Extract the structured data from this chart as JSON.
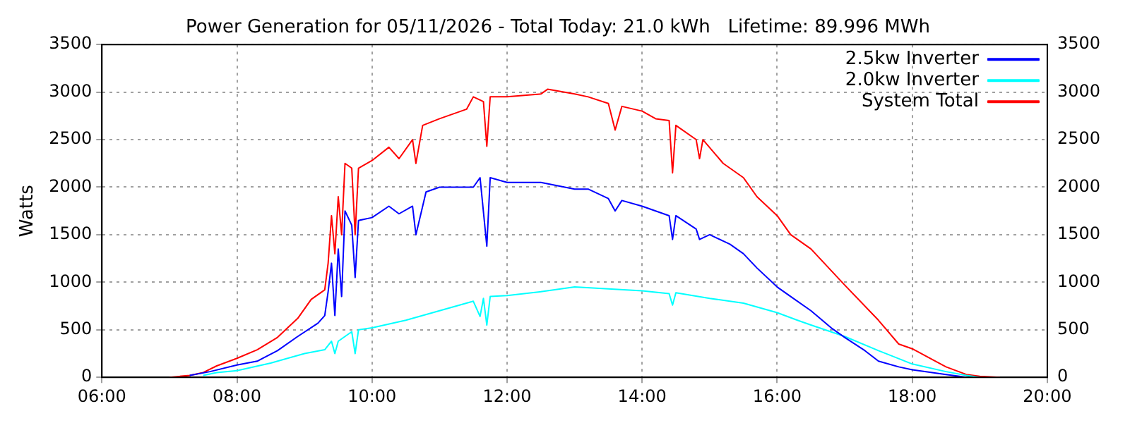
{
  "chart_data": {
    "type": "line",
    "title": "Power Generation for 05/11/2026 - Total Today: 21.0 kWh   Lifetime: 89.996 MWh",
    "ylabel": "Watts",
    "xlim": [
      6,
      20
    ],
    "xticks": [
      {
        "value": 6,
        "label": "06:00"
      },
      {
        "value": 8,
        "label": "08:00"
      },
      {
        "value": 10,
        "label": "10:00"
      },
      {
        "value": 12,
        "label": "12:00"
      },
      {
        "value": 14,
        "label": "14:00"
      },
      {
        "value": 16,
        "label": "16:00"
      },
      {
        "value": 18,
        "label": "18:00"
      },
      {
        "value": 20,
        "label": "20:00"
      }
    ],
    "ylim": [
      0,
      3500
    ],
    "yticks": [
      0,
      500,
      1000,
      1500,
      2000,
      2500,
      3000,
      3500
    ],
    "y2lim": [
      0,
      3500
    ],
    "y2ticks": [
      0,
      500,
      1000,
      1500,
      2000,
      2500,
      3000,
      3500
    ],
    "grid": true,
    "legend": "top right",
    "marker": "none",
    "line_style": "solid",
    "series": [
      {
        "name": "2.5kw Inverter",
        "color": "#0000ff",
        "x": [
          7.3,
          7.6,
          8.0,
          8.3,
          8.6,
          8.9,
          9.2,
          9.3,
          9.35,
          9.4,
          9.45,
          9.5,
          9.55,
          9.6,
          9.7,
          9.75,
          9.8,
          10.0,
          10.25,
          10.4,
          10.6,
          10.65,
          10.8,
          11.0,
          11.5,
          11.6,
          11.7,
          11.75,
          12.0,
          12.5,
          13.0,
          13.2,
          13.5,
          13.6,
          13.7,
          14.0,
          14.4,
          14.45,
          14.5,
          14.8,
          14.85,
          15.0,
          15.3,
          15.5,
          15.7,
          16.0,
          16.2,
          16.5,
          16.8,
          17.0,
          17.3,
          17.5,
          17.8,
          18.0,
          18.5,
          18.7,
          18.8
        ],
        "values": [
          20,
          60,
          130,
          170,
          280,
          430,
          570,
          650,
          900,
          1200,
          650,
          1350,
          850,
          1750,
          1600,
          1050,
          1650,
          1680,
          1800,
          1720,
          1800,
          1500,
          1950,
          2000,
          2000,
          2100,
          1380,
          2100,
          2050,
          2050,
          1980,
          1980,
          1880,
          1750,
          1860,
          1800,
          1700,
          1450,
          1700,
          1560,
          1450,
          1500,
          1400,
          1300,
          1150,
          950,
          850,
          700,
          520,
          420,
          280,
          170,
          110,
          80,
          30,
          10,
          0
        ]
      },
      {
        "name": "2.0kw Inverter",
        "color": "#00ffff",
        "x": [
          7.5,
          7.7,
          8.0,
          8.5,
          9.0,
          9.3,
          9.4,
          9.45,
          9.5,
          9.7,
          9.75,
          9.8,
          10.0,
          10.5,
          11.0,
          11.5,
          11.6,
          11.65,
          11.7,
          11.75,
          12.0,
          12.5,
          13.0,
          13.5,
          14.0,
          14.4,
          14.45,
          14.5,
          15.0,
          15.5,
          16.0,
          16.3,
          16.5,
          17.0,
          17.5,
          18.0,
          18.5,
          18.8,
          19.0
        ],
        "values": [
          20,
          50,
          70,
          150,
          250,
          290,
          380,
          250,
          380,
          480,
          250,
          500,
          520,
          600,
          700,
          800,
          640,
          830,
          550,
          850,
          860,
          900,
          950,
          930,
          910,
          880,
          760,
          890,
          830,
          780,
          680,
          600,
          550,
          430,
          280,
          140,
          60,
          20,
          0
        ]
      },
      {
        "name": "System Total",
        "color": "#ff0000",
        "x": [
          7.0,
          7.3,
          7.5,
          7.7,
          8.0,
          8.3,
          8.6,
          8.9,
          9.1,
          9.3,
          9.35,
          9.4,
          9.45,
          9.5,
          9.55,
          9.6,
          9.7,
          9.75,
          9.8,
          10.0,
          10.25,
          10.4,
          10.6,
          10.65,
          10.75,
          11.0,
          11.4,
          11.5,
          11.65,
          11.7,
          11.75,
          12.0,
          12.5,
          12.6,
          13.0,
          13.2,
          13.5,
          13.6,
          13.7,
          14.0,
          14.2,
          14.4,
          14.45,
          14.5,
          14.8,
          14.85,
          14.9,
          15.2,
          15.5,
          15.7,
          16.0,
          16.2,
          16.5,
          17.0,
          17.5,
          17.8,
          18.0,
          18.5,
          18.8,
          19.0,
          19.3
        ],
        "values": [
          0,
          20,
          50,
          120,
          200,
          290,
          420,
          620,
          820,
          920,
          1200,
          1700,
          1300,
          1900,
          1500,
          2250,
          2200,
          1500,
          2200,
          2280,
          2420,
          2300,
          2500,
          2250,
          2650,
          2720,
          2820,
          2950,
          2900,
          2430,
          2950,
          2950,
          2980,
          3030,
          2980,
          2950,
          2880,
          2600,
          2850,
          2800,
          2720,
          2700,
          2150,
          2650,
          2500,
          2300,
          2500,
          2250,
          2100,
          1900,
          1700,
          1500,
          1350,
          970,
          600,
          350,
          300,
          110,
          30,
          10,
          0
        ]
      }
    ]
  }
}
